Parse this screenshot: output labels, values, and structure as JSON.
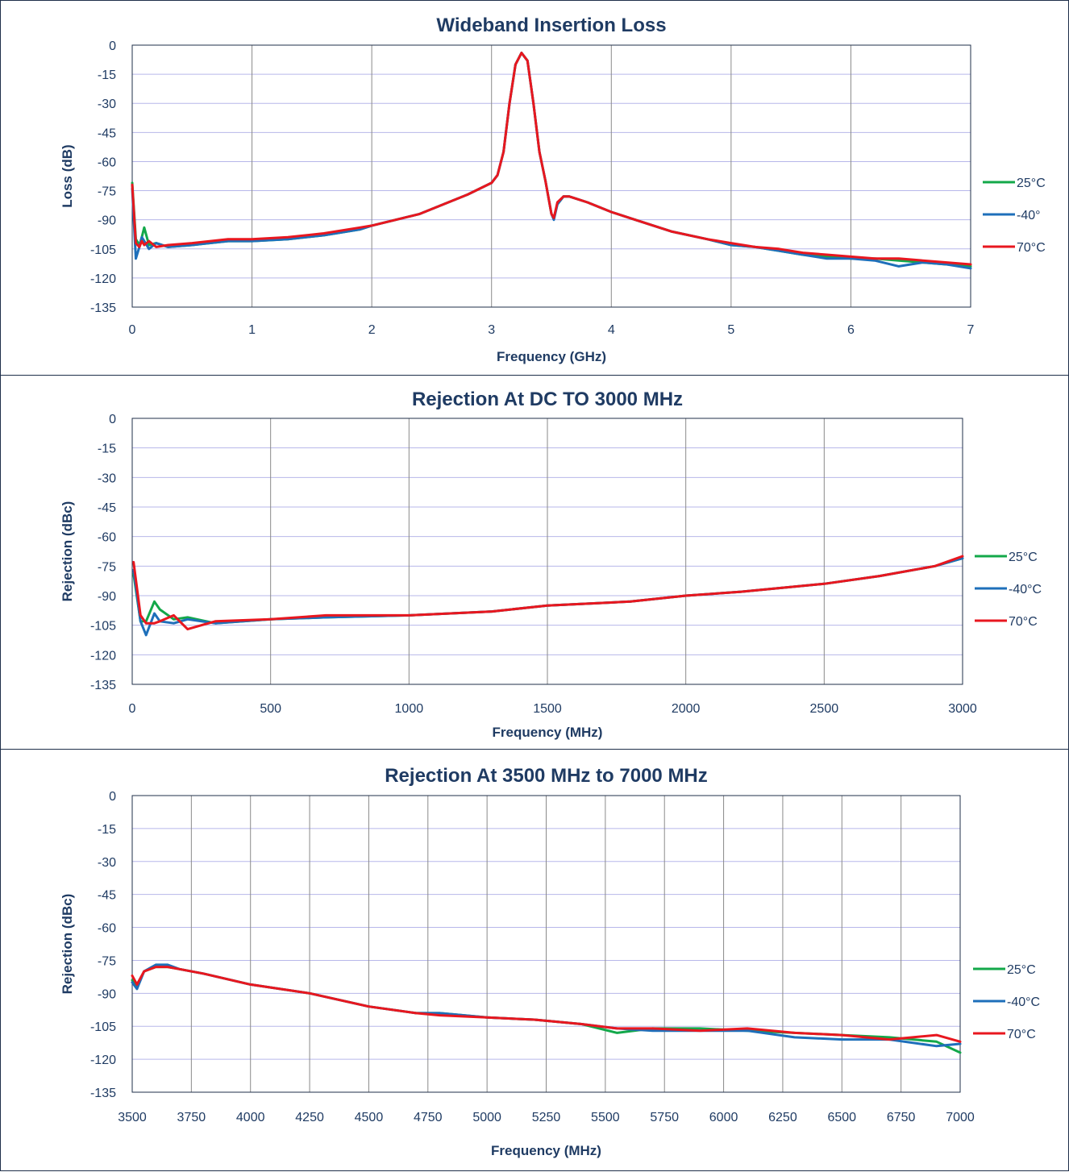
{
  "chart_data": [
    {
      "type": "line",
      "title": "Wideband Insertion Loss",
      "xlabel": "Frequency (GHz)",
      "ylabel": "Loss (dB)",
      "xlim": [
        0,
        7
      ],
      "ylim": [
        -135,
        0
      ],
      "x_ticks": [
        "0",
        "1",
        "2",
        "3",
        "4",
        "5",
        "6",
        "7"
      ],
      "y_ticks": [
        "0",
        "-15",
        "-30",
        "-45",
        "-60",
        "-75",
        "-90",
        "-105",
        "-120",
        "-135"
      ],
      "grid": "vertical gray at x ticks, horizontal lavender at y ticks",
      "legend": "right",
      "series": [
        {
          "name": "25°C",
          "color": "#13a84a",
          "x": [
            0.0,
            0.03,
            0.06,
            0.08,
            0.1,
            0.14,
            0.2,
            0.3,
            0.5,
            0.8,
            1.0,
            1.3,
            1.6,
            1.9,
            2.0,
            2.2,
            2.4,
            2.6,
            2.8,
            3.0,
            3.05,
            3.1,
            3.15,
            3.2,
            3.25,
            3.3,
            3.35,
            3.4,
            3.45,
            3.5,
            3.52,
            3.55,
            3.6,
            3.65,
            3.7,
            3.8,
            4.0,
            4.2,
            4.5,
            4.8,
            5.0,
            5.2,
            5.4,
            5.6,
            5.8,
            6.0,
            6.2,
            6.4,
            6.6,
            6.8,
            7.0
          ],
          "y": [
            -71,
            -100,
            -103,
            -99,
            -94,
            -103,
            -102,
            -104,
            -103,
            -101,
            -101,
            -100,
            -98,
            -95,
            -93,
            -90,
            -87,
            -82,
            -77,
            -71,
            -67,
            -55,
            -30,
            -10,
            -4,
            -8,
            -30,
            -55,
            -70,
            -87,
            -89,
            -82,
            -78,
            -78,
            -79,
            -81,
            -86,
            -90,
            -96,
            -100,
            -103,
            -104,
            -106,
            -108,
            -109,
            -110,
            -110,
            -111,
            -112,
            -113,
            -114
          ]
        },
        {
          "name": "-40°",
          "color": "#1e6fba",
          "x": [
            0.0,
            0.03,
            0.06,
            0.08,
            0.1,
            0.14,
            0.2,
            0.3,
            0.5,
            0.8,
            1.0,
            1.3,
            1.6,
            1.9,
            2.0,
            2.2,
            2.4,
            2.6,
            2.8,
            3.0,
            3.05,
            3.1,
            3.15,
            3.2,
            3.25,
            3.3,
            3.35,
            3.4,
            3.45,
            3.5,
            3.52,
            3.55,
            3.6,
            3.65,
            3.7,
            3.8,
            4.0,
            4.2,
            4.5,
            4.8,
            5.0,
            5.2,
            5.4,
            5.6,
            5.8,
            6.0,
            6.2,
            6.4,
            6.6,
            6.8,
            7.0
          ],
          "y": [
            -74,
            -110,
            -104,
            -99,
            -101,
            -105,
            -102,
            -104,
            -103,
            -101,
            -101,
            -100,
            -98,
            -95,
            -93,
            -90,
            -87,
            -82,
            -77,
            -71,
            -67,
            -55,
            -30,
            -10,
            -4,
            -8,
            -30,
            -55,
            -70,
            -87,
            -90,
            -82,
            -78,
            -78,
            -79,
            -81,
            -86,
            -90,
            -96,
            -100,
            -103,
            -104,
            -106,
            -108,
            -110,
            -110,
            -111,
            -114,
            -112,
            -113,
            -115
          ]
        },
        {
          "name": "70°C",
          "color": "#e8171f",
          "x": [
            0.0,
            0.03,
            0.06,
            0.08,
            0.1,
            0.14,
            0.2,
            0.3,
            0.5,
            0.8,
            1.0,
            1.3,
            1.6,
            1.9,
            2.0,
            2.2,
            2.4,
            2.6,
            2.8,
            3.0,
            3.05,
            3.1,
            3.15,
            3.2,
            3.25,
            3.3,
            3.35,
            3.4,
            3.45,
            3.5,
            3.52,
            3.55,
            3.6,
            3.65,
            3.7,
            3.8,
            4.0,
            4.2,
            4.5,
            4.8,
            5.0,
            5.2,
            5.4,
            5.6,
            5.8,
            6.0,
            6.2,
            6.4,
            6.6,
            6.8,
            7.0
          ],
          "y": [
            -72,
            -102,
            -104,
            -101,
            -103,
            -101,
            -104,
            -103,
            -102,
            -100,
            -100,
            -99,
            -97,
            -94,
            -93,
            -90,
            -87,
            -82,
            -77,
            -71,
            -67,
            -55,
            -30,
            -10,
            -4,
            -8,
            -30,
            -55,
            -70,
            -87,
            -89,
            -81,
            -78,
            -78,
            -79,
            -81,
            -86,
            -90,
            -96,
            -100,
            -102,
            -104,
            -105,
            -107,
            -108,
            -109,
            -110,
            -110,
            -111,
            -112,
            -113
          ]
        }
      ]
    },
    {
      "type": "line",
      "title": "Rejection At DC TO 3000 MHz",
      "xlabel": "Frequency (MHz)",
      "ylabel": "Rejection (dBc)",
      "xlim": [
        0,
        3000
      ],
      "ylim": [
        -135,
        0
      ],
      "x_ticks": [
        "0",
        "500",
        "1000",
        "1500",
        "2000",
        "2500",
        "3000"
      ],
      "y_ticks": [
        "0",
        "-15",
        "-30",
        "-45",
        "-60",
        "-75",
        "-90",
        "-105",
        "-120",
        "-135"
      ],
      "grid": "vertical gray at x ticks, horizontal lavender at y ticks",
      "legend": "right",
      "series": [
        {
          "name": "25°C",
          "color": "#13a84a",
          "x": [
            5,
            30,
            50,
            80,
            100,
            150,
            200,
            300,
            500,
            700,
            1000,
            1300,
            1500,
            1800,
            2000,
            2200,
            2500,
            2700,
            2900,
            3000
          ],
          "y": [
            -79,
            -103,
            -103,
            -93,
            -97,
            -102,
            -101,
            -104,
            -102,
            -101,
            -100,
            -98,
            -95,
            -93,
            -90,
            -88,
            -84,
            -80,
            -75,
            -71
          ]
        },
        {
          "name": "-40°C",
          "color": "#1e6fba",
          "x": [
            5,
            30,
            50,
            80,
            100,
            150,
            200,
            300,
            500,
            700,
            1000,
            1300,
            1500,
            1800,
            2000,
            2200,
            2500,
            2700,
            2900,
            3000
          ],
          "y": [
            -77,
            -103,
            -110,
            -99,
            -103,
            -104,
            -102,
            -104,
            -102,
            -101,
            -100,
            -98,
            -95,
            -93,
            -90,
            -88,
            -84,
            -80,
            -75,
            -71
          ]
        },
        {
          "name": "70°C",
          "color": "#e8171f",
          "x": [
            5,
            30,
            50,
            80,
            100,
            150,
            200,
            300,
            500,
            700,
            1000,
            1300,
            1500,
            1800,
            2000,
            2200,
            2500,
            2700,
            2900,
            3000
          ],
          "y": [
            -73,
            -100,
            -104,
            -104,
            -103,
            -100,
            -107,
            -103,
            -102,
            -100,
            -100,
            -98,
            -95,
            -93,
            -90,
            -88,
            -84,
            -80,
            -75,
            -70
          ]
        }
      ]
    },
    {
      "type": "line",
      "title": "Rejection At 3500 MHz to 7000 MHz",
      "xlabel": "Frequency (MHz)",
      "ylabel": "Rejection (dBc)",
      "xlim": [
        3500,
        7000
      ],
      "ylim": [
        -135,
        0
      ],
      "x_ticks": [
        "3500",
        "3750",
        "4000",
        "4250",
        "4500",
        "4750",
        "5000",
        "5250",
        "5500",
        "5750",
        "6000",
        "6250",
        "6500",
        "6750",
        "7000"
      ],
      "y_ticks": [
        "0",
        "-15",
        "-30",
        "-45",
        "-60",
        "-75",
        "-90",
        "-105",
        "-120",
        "-135"
      ],
      "grid": "vertical gray at x ticks, horizontal lavender at y ticks",
      "legend": "right",
      "series": [
        {
          "name": "25°C",
          "color": "#13a84a",
          "x": [
            3500,
            3520,
            3550,
            3600,
            3650,
            3700,
            3800,
            4000,
            4250,
            4500,
            4700,
            4800,
            5000,
            5200,
            5400,
            5550,
            5700,
            5900,
            6100,
            6300,
            6500,
            6700,
            6900,
            7000
          ],
          "y": [
            -84,
            -87,
            -80,
            -78,
            -78,
            -79,
            -81,
            -86,
            -90,
            -96,
            -99,
            -99,
            -101,
            -102,
            -104,
            -108,
            -106,
            -106,
            -107,
            -108,
            -109,
            -110,
            -112,
            -117
          ]
        },
        {
          "name": "-40°C",
          "color": "#1e6fba",
          "x": [
            3500,
            3520,
            3550,
            3600,
            3650,
            3700,
            3800,
            4000,
            4250,
            4500,
            4700,
            4800,
            5000,
            5200,
            5400,
            5550,
            5700,
            5900,
            6100,
            6300,
            6500,
            6700,
            6900,
            7000
          ],
          "y": [
            -85,
            -88,
            -80,
            -77,
            -77,
            -79,
            -81,
            -86,
            -90,
            -96,
            -99,
            -99,
            -101,
            -102,
            -104,
            -106,
            -107,
            -107,
            -107,
            -110,
            -111,
            -111,
            -114,
            -113
          ]
        },
        {
          "name": "70°C",
          "color": "#e8171f",
          "x": [
            3500,
            3520,
            3550,
            3600,
            3650,
            3700,
            3800,
            4000,
            4250,
            4500,
            4700,
            4800,
            5000,
            5200,
            5400,
            5550,
            5700,
            5900,
            6100,
            6300,
            6500,
            6700,
            6900,
            7000
          ],
          "y": [
            -82,
            -86,
            -80,
            -78,
            -78,
            -79,
            -81,
            -86,
            -90,
            -96,
            -99,
            -100,
            -101,
            -102,
            -104,
            -106,
            -106,
            -107,
            -106,
            -108,
            -109,
            -111,
            -109,
            -112
          ]
        }
      ]
    }
  ]
}
